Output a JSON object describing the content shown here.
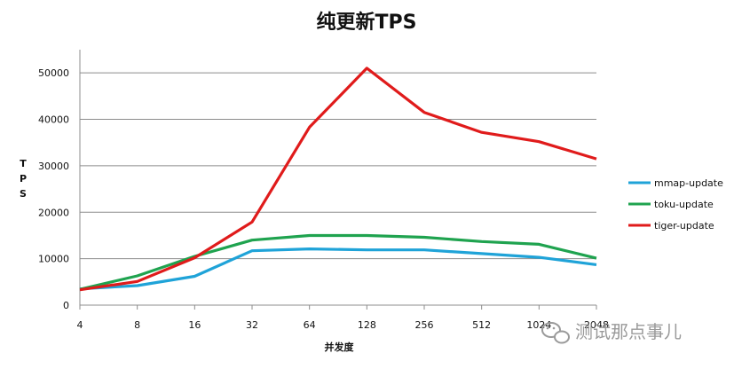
{
  "chart_data": {
    "type": "line",
    "title": "纯更新TPS",
    "xlabel": "并发度",
    "ylabel": "TPS",
    "categories": [
      "4",
      "8",
      "16",
      "32",
      "64",
      "128",
      "256",
      "512",
      "1024",
      "2048"
    ],
    "ylim": [
      0,
      55000
    ],
    "yticks": [
      0,
      10000,
      20000,
      30000,
      40000,
      50000
    ],
    "grid": true,
    "legend_position": "right",
    "series": [
      {
        "name": "mmap-update",
        "color": "#1fa3d8",
        "values": [
          3500,
          4200,
          6200,
          11700,
          12100,
          11900,
          11900,
          11100,
          10300,
          8700
        ]
      },
      {
        "name": "toku-update",
        "color": "#1fa34f",
        "values": [
          3400,
          6300,
          10500,
          14000,
          15000,
          15000,
          14600,
          13700,
          13100,
          10100
        ]
      },
      {
        "name": "tiger-update",
        "color": "#e01b1b",
        "values": [
          3300,
          5100,
          10200,
          17900,
          38300,
          51000,
          41500,
          37200,
          35200,
          31500
        ]
      }
    ]
  },
  "watermark": {
    "text": "测试那点事儿",
    "icon": "wechat-icon"
  }
}
